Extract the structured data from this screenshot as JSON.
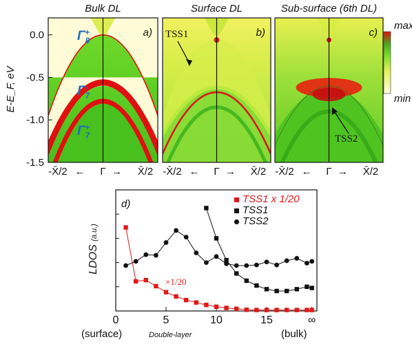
{
  "colors": {
    "cmap_low": "#fffde0",
    "cmap_mid": "#7ee02a",
    "cmap_high": "#e01010",
    "gamma_label": "#1f6fbf",
    "tss1_scaled": "#e01818",
    "series_black": "#111111"
  },
  "panels": [
    {
      "title": "Bulk DL",
      "tag": "a)"
    },
    {
      "title": "Surface DL",
      "tag": "b)"
    },
    {
      "title": "Sub-surface (6th DL)",
      "tag": "c)"
    }
  ],
  "band_axis": {
    "ylabel": "E-E_F, eV",
    "ylim": [
      -1.5,
      0.2
    ],
    "yticks": [
      {
        "v": 0.0,
        "label": "0.0"
      },
      {
        "v": -0.5,
        "label": "-0.5"
      },
      {
        "v": -1.0,
        "label": "-1.0"
      },
      {
        "v": -1.5,
        "label": "-1.5"
      }
    ],
    "xticks": [
      "-X̄/2",
      "←",
      "Γ",
      "→",
      "X̄/2"
    ]
  },
  "band_labels": {
    "g8": {
      "base": "Γ",
      "sub": "8",
      "sup": "+"
    },
    "g7m": {
      "base": "Γ",
      "sub": "7",
      "sup": "-"
    },
    "g7p": {
      "base": "Γ",
      "sub": "7",
      "sup": "+"
    },
    "tss1": "TSS1",
    "tss2": "TSS2"
  },
  "colorbar": {
    "max": "max",
    "min": "min"
  },
  "chart_data": {
    "type": "line",
    "tag": "d)",
    "ylabel": "LDOS",
    "ylabel_unit": "(a.u.)",
    "xlabel": "Double-layer",
    "xlabel_left": "(surface)",
    "xlabel_right": "(bulk)",
    "xlim": [
      0,
      20
    ],
    "ylim": [
      0,
      1
    ],
    "xticks": [
      {
        "v": 0,
        "label": "0"
      },
      {
        "v": 5,
        "label": "5"
      },
      {
        "v": 10,
        "label": "10"
      },
      {
        "v": 15,
        "label": "15"
      },
      {
        "v": 19.5,
        "label": "∞"
      }
    ],
    "annotation": "×1/20",
    "series": [
      {
        "name": "TSS1 x 1/20",
        "marker": "square",
        "color": "#e01818",
        "x": [
          1,
          2,
          3,
          4,
          5,
          6,
          7,
          8,
          9,
          10,
          11,
          12,
          13,
          14,
          15,
          16,
          17,
          18,
          19,
          19.5
        ],
        "y": [
          0.69,
          0.245,
          0.255,
          0.205,
          0.155,
          0.12,
          0.09,
          0.07,
          0.05,
          0.035,
          0.025,
          0.018,
          0.01,
          0.008,
          0.008,
          0.008,
          0.008,
          0.008,
          0.008,
          0.008
        ]
      },
      {
        "name": "TSS1",
        "marker": "square",
        "color": "#111111",
        "x": [
          9,
          10,
          11,
          12,
          13,
          14,
          15,
          16,
          17,
          18,
          19,
          19.5
        ],
        "y": [
          0.85,
          0.6,
          0.42,
          0.31,
          0.25,
          0.21,
          0.18,
          0.165,
          0.165,
          0.18,
          0.2,
          0.19
        ]
      },
      {
        "name": "TSS2",
        "marker": "circle",
        "color": "#111111",
        "x": [
          1,
          2,
          3,
          4,
          5,
          6,
          7,
          8,
          9,
          10,
          11,
          12,
          13,
          14,
          15,
          16,
          17,
          18,
          19,
          19.5
        ],
        "y": [
          0.375,
          0.41,
          0.465,
          0.46,
          0.565,
          0.665,
          0.61,
          0.48,
          0.4,
          0.45,
          0.39,
          0.375,
          0.375,
          0.38,
          0.405,
          0.38,
          0.415,
          0.435,
          0.395,
          0.41
        ]
      }
    ]
  }
}
